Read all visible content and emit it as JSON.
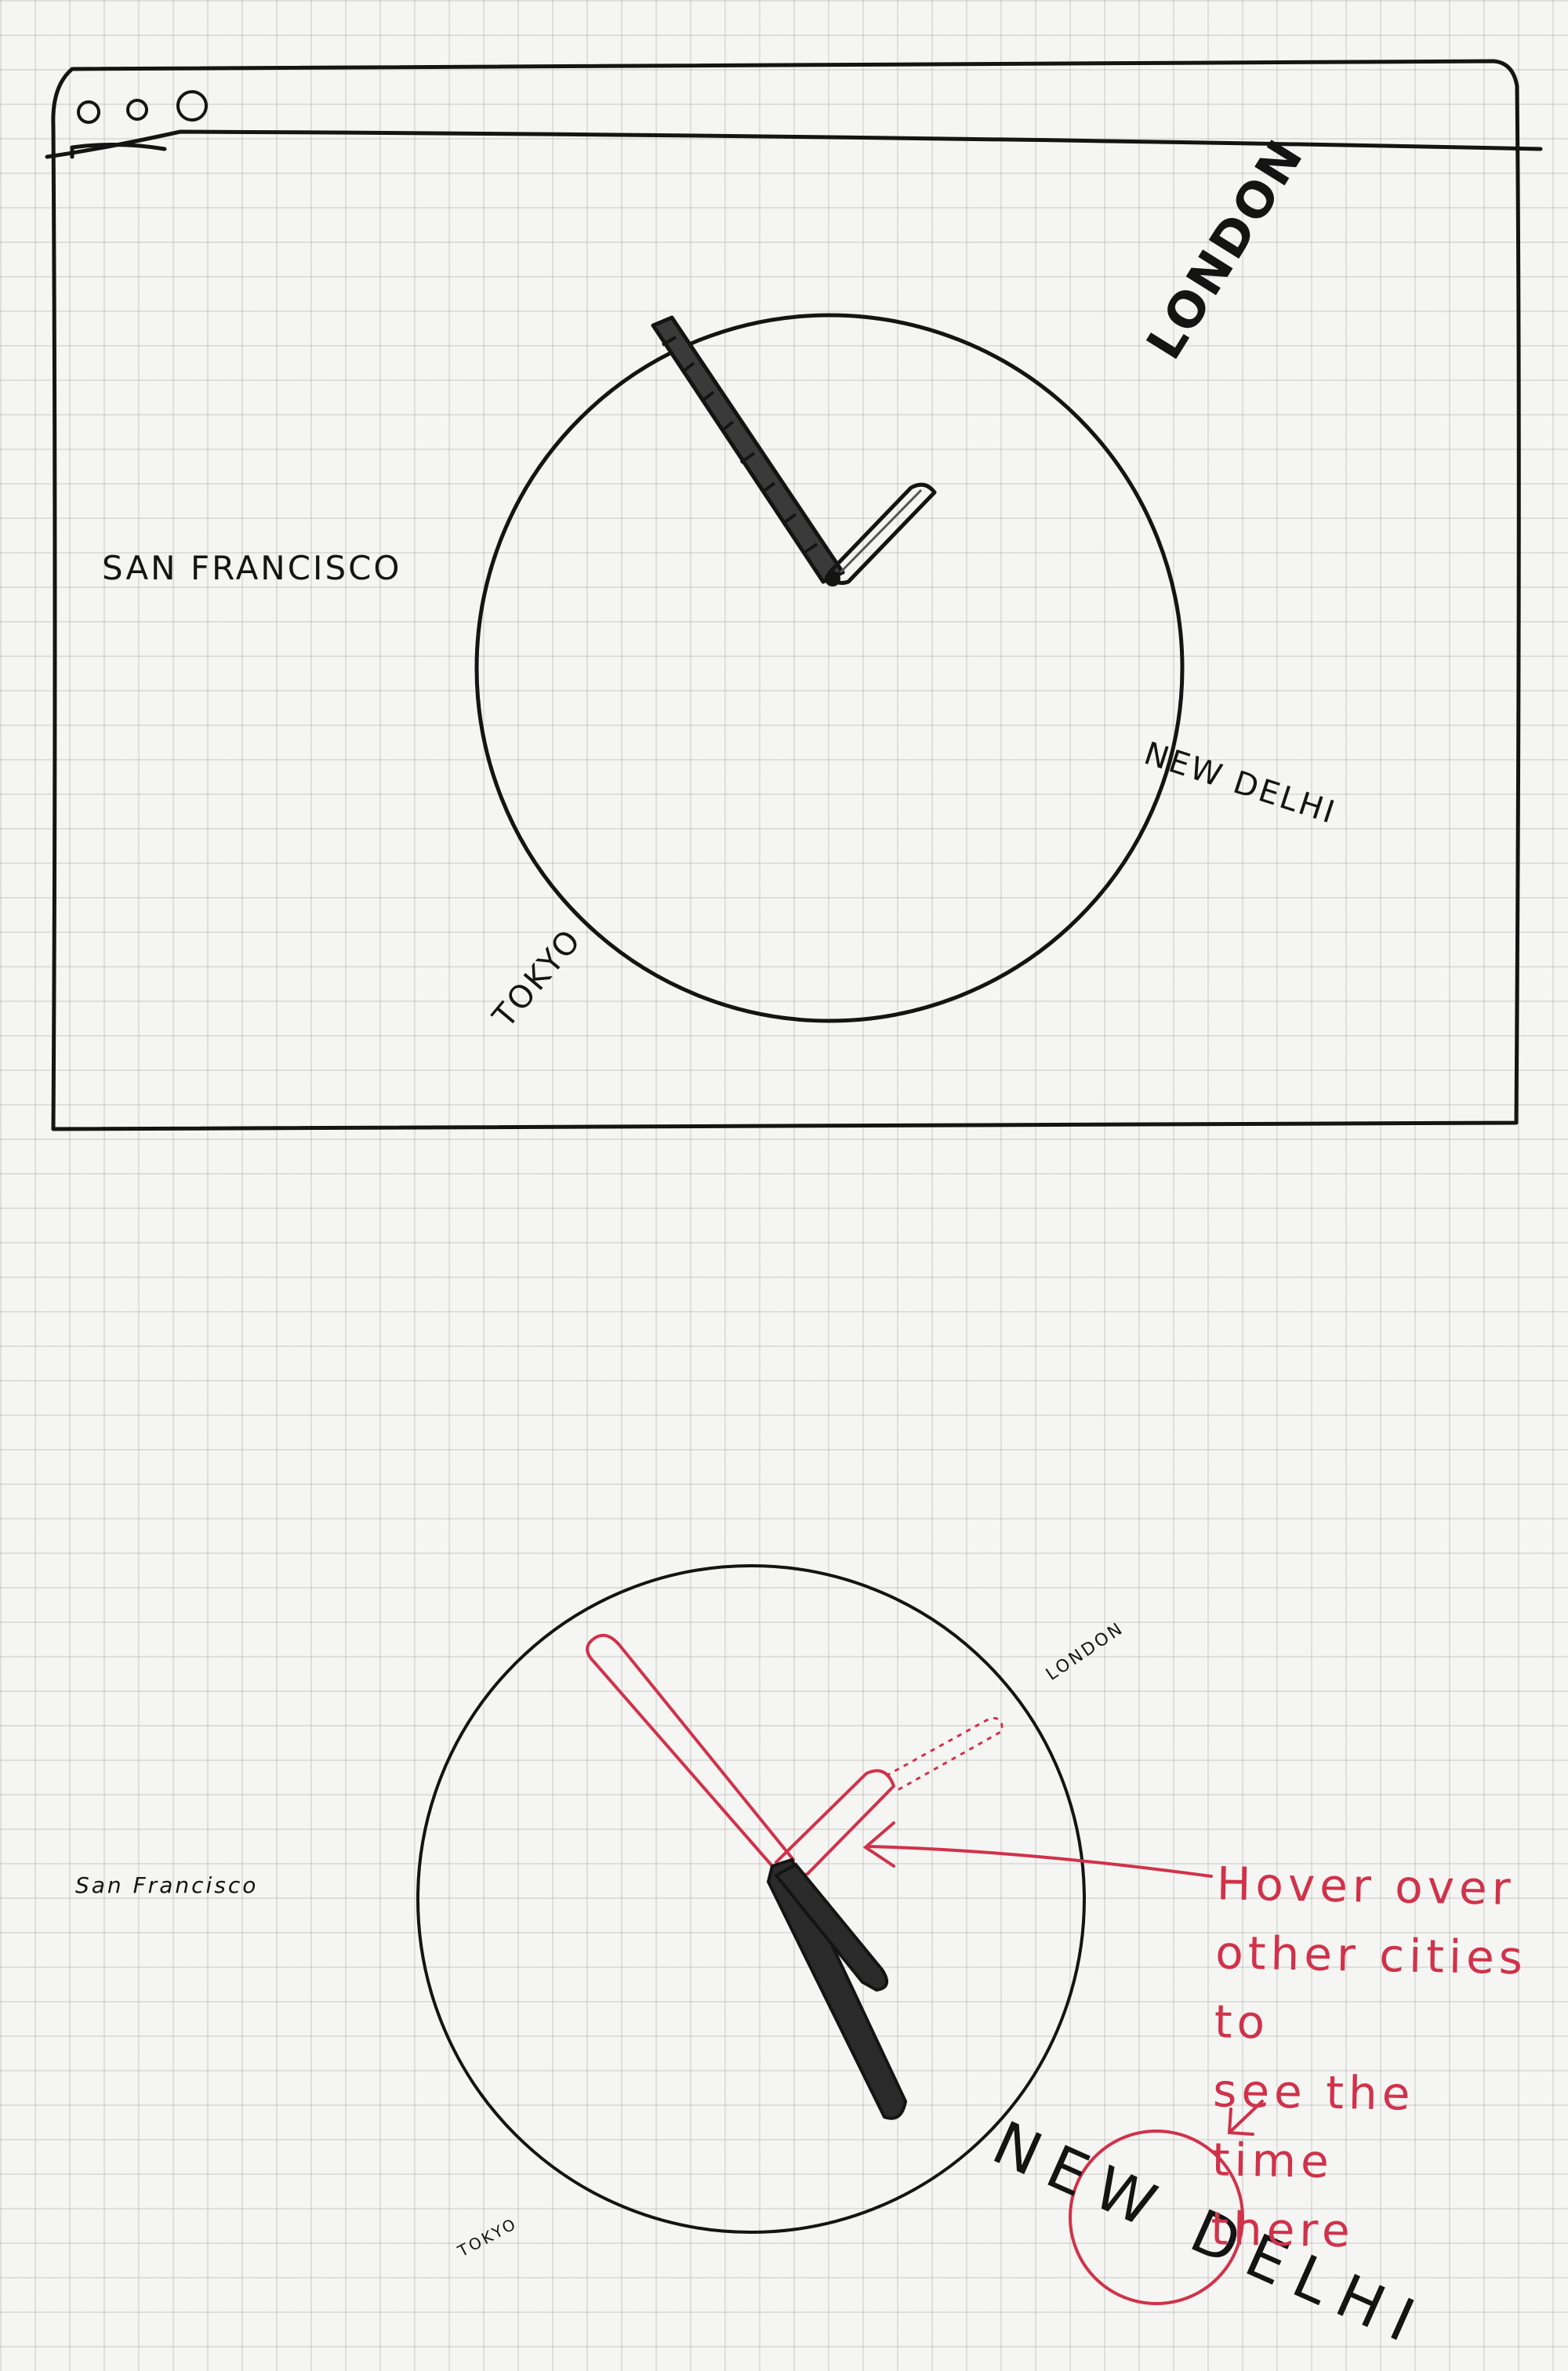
{
  "window": {
    "traffic_lights": [
      "close-button",
      "minimize-button",
      "maximize-button"
    ]
  },
  "cities": {
    "london": "LONDON",
    "san_francisco": "SAN FRANCISCO",
    "new_delhi": "NEW DELHI",
    "tokyo": "TOKYO"
  },
  "hover_sketch": {
    "cities": {
      "london": "LONDON",
      "san_francisco": "San Francisco",
      "new_delhi": "NEW DELHI",
      "tokyo": "TOKYO"
    },
    "note": "Hover over\nother cities to\nsee the time\nthere"
  },
  "colors": {
    "ink": "#141414",
    "annotation": "#d0324a",
    "paper": "#f5f5f3"
  }
}
